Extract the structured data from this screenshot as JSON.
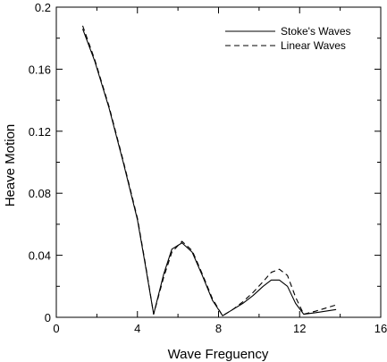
{
  "chart_data": {
    "type": "line",
    "xlabel": "Wave Freguency",
    "ylabel": "Heave Motion",
    "xlim": [
      0,
      16
    ],
    "ylim": [
      0,
      0.2
    ],
    "x_ticks": [
      "0",
      "4",
      "8",
      "12",
      "16"
    ],
    "y_ticks": [
      "0",
      "0.04",
      "0.08",
      "0.12",
      "0.16",
      "0.2"
    ],
    "grid": false,
    "legend_position": "top-right",
    "series": [
      {
        "name": "Stoke's Waves",
        "style": "solid",
        "x": [
          1.3,
          1.9,
          2.6,
          3.3,
          4.0,
          4.4,
          4.8,
          5.3,
          5.7,
          6.2,
          6.7,
          7.2,
          7.7,
          8.2,
          8.7,
          9.2,
          9.7,
          10.2,
          10.6,
          11.0,
          11.4,
          11.8,
          12.2,
          12.8,
          13.8
        ],
        "values": [
          0.186,
          0.165,
          0.135,
          0.1,
          0.063,
          0.033,
          0.002,
          0.028,
          0.044,
          0.048,
          0.042,
          0.027,
          0.011,
          0.001,
          0.005,
          0.009,
          0.014,
          0.02,
          0.024,
          0.024,
          0.02,
          0.009,
          0.002,
          0.003,
          0.005
        ]
      },
      {
        "name": "Linear Waves",
        "style": "dashed",
        "x": [
          1.3,
          1.9,
          2.6,
          3.3,
          4.0,
          4.4,
          4.8,
          5.3,
          5.7,
          6.2,
          6.7,
          7.2,
          7.7,
          8.2,
          8.7,
          9.2,
          9.7,
          10.2,
          10.6,
          11.0,
          11.4,
          11.8,
          12.2,
          12.8,
          13.8
        ],
        "values": [
          0.188,
          0.166,
          0.136,
          0.101,
          0.064,
          0.034,
          0.002,
          0.026,
          0.042,
          0.049,
          0.043,
          0.028,
          0.012,
          0.001,
          0.005,
          0.01,
          0.016,
          0.023,
          0.029,
          0.031,
          0.027,
          0.013,
          0.002,
          0.004,
          0.008
        ]
      }
    ]
  }
}
